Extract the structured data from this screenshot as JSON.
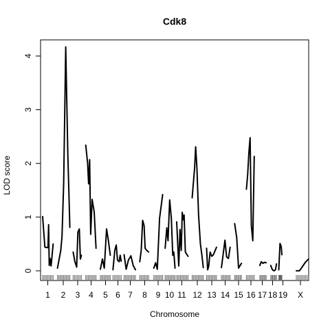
{
  "chart_data": {
    "type": "line",
    "title": "Cdk8",
    "xlabel": "Chromosome",
    "ylabel": "LOD score",
    "ylim": [
      -0.18,
      4.3
    ],
    "xlim": [
      0,
      130
    ],
    "yticks": [
      0,
      1,
      2,
      3,
      4
    ],
    "grid": false,
    "legend": "none",
    "line_color": "#000000",
    "chromosomes": [
      {
        "label": "1",
        "start": 1.0,
        "end": 6.1,
        "x": [
          1.0,
          2.1,
          3.6,
          3.9,
          4.2,
          4.6,
          5.1,
          6.1
        ],
        "y": [
          1.01,
          0.44,
          0.43,
          0.86,
          0.1,
          0.23,
          0.09,
          0.5
        ]
      },
      {
        "label": "2",
        "start": 8.2,
        "end": 14.2,
        "x": [
          8.2,
          9.8,
          10.4,
          11.2,
          12.2,
          13.2,
          14.2
        ],
        "y": [
          0.05,
          0.38,
          0.64,
          1.62,
          4.17,
          2.2,
          0.81
        ]
      },
      {
        "label": "3",
        "start": 15.8,
        "end": 19.8,
        "x": [
          15.8,
          16.6,
          17.5,
          18.1,
          18.8,
          19.3,
          19.8
        ],
        "y": [
          0.35,
          0.18,
          0.07,
          0.72,
          0.78,
          0.22,
          0.29
        ]
      },
      {
        "label": "4",
        "start": 21.9,
        "end": 26.9,
        "x": [
          21.9,
          22.8,
          23.3,
          23.8,
          24.3,
          25.0,
          26.0,
          26.9
        ],
        "y": [
          2.34,
          2.01,
          1.62,
          2.07,
          0.68,
          1.33,
          1.1,
          0.42
        ]
      },
      {
        "label": "5",
        "start": 29.0,
        "end": 33.8,
        "x": [
          29.0,
          30.0,
          30.9,
          32.0,
          32.9,
          33.8
        ],
        "y": [
          0.03,
          0.22,
          0.05,
          0.78,
          0.56,
          0.29
        ]
      },
      {
        "label": "6",
        "start": 35.1,
        "end": 39.1,
        "x": [
          35.1,
          36.0,
          36.7,
          37.3,
          38.1,
          38.6,
          39.1
        ],
        "y": [
          0.02,
          0.38,
          0.48,
          0.2,
          0.17,
          0.29,
          0.18
        ]
      },
      {
        "label": "7",
        "start": 40.5,
        "end": 46.0,
        "x": [
          40.5,
          41.5,
          42.6,
          43.8,
          44.9,
          46.0
        ],
        "y": [
          0.3,
          0.03,
          0.2,
          0.28,
          0.1,
          0.02
        ]
      },
      {
        "label": "8",
        "start": 48.1,
        "end": 52.4,
        "x": [
          48.1,
          48.8,
          49.5,
          50.2,
          50.7,
          51.5,
          52.4
        ],
        "y": [
          0.17,
          0.38,
          0.94,
          0.84,
          0.42,
          0.38,
          0.35
        ]
      },
      {
        "label": "9",
        "start": 54.9,
        "end": 59.2,
        "x": [
          54.9,
          55.8,
          56.6,
          57.7,
          59.2
        ],
        "y": [
          0.05,
          0.15,
          0.03,
          0.98,
          1.42
        ]
      },
      {
        "label": "10",
        "start": 60.4,
        "end": 65.2,
        "x": [
          60.4,
          61.2,
          61.8,
          62.6,
          63.4,
          64.1,
          64.6,
          65.2
        ],
        "y": [
          0.42,
          0.8,
          0.56,
          1.32,
          0.98,
          0.29,
          0.35,
          0.05
        ]
      },
      {
        "label": "11",
        "start": 66.0,
        "end": 71.5,
        "x": [
          66.0,
          67.0,
          67.6,
          68.2,
          68.7,
          69.1,
          69.6,
          70.2,
          71.5
        ],
        "y": [
          0.91,
          0.09,
          0.77,
          0.38,
          1.09,
          0.95,
          1.04,
          0.35,
          0.27
        ]
      },
      {
        "label": "12",
        "start": 73.5,
        "end": 78.9,
        "x": [
          73.5,
          74.7,
          75.2,
          75.8,
          76.6,
          77.5,
          78.2,
          78.9
        ],
        "y": [
          1.36,
          1.92,
          2.31,
          1.92,
          1.05,
          0.5,
          0.3,
          0.06
        ]
      },
      {
        "label": "13",
        "start": 80.5,
        "end": 85.3,
        "x": [
          80.5,
          81.0,
          81.5,
          82.2,
          83.0,
          83.8,
          85.3
        ],
        "y": [
          0.42,
          0.02,
          0.08,
          0.35,
          0.27,
          0.3,
          0.44
        ]
      },
      {
        "label": "14",
        "start": 87.7,
        "end": 91.9,
        "x": [
          87.7,
          88.5,
          89.4,
          90.2,
          91.1,
          91.9
        ],
        "y": [
          0.06,
          0.3,
          0.57,
          0.26,
          0.23,
          0.44
        ]
      },
      {
        "label": "15",
        "start": 94.1,
        "end": 97.4,
        "x": [
          94.1,
          95.1,
          96.0,
          97.4
        ],
        "y": [
          0.88,
          0.62,
          0.05,
          0.14
        ]
      },
      {
        "label": "16",
        "start": 99.8,
        "end": 103.6,
        "x": [
          99.8,
          100.4,
          101.0,
          101.6,
          102.2,
          102.9,
          103.6
        ],
        "y": [
          1.52,
          1.78,
          2.2,
          2.48,
          0.84,
          0.56,
          2.13
        ]
      },
      {
        "label": "17",
        "start": 106.3,
        "end": 109.4,
        "x": [
          106.3,
          107.0,
          107.8,
          108.6,
          109.4
        ],
        "y": [
          0.1,
          0.17,
          0.14,
          0.16,
          0.15
        ]
      },
      {
        "label": "18",
        "start": 111.6,
        "end": 114.4,
        "x": [
          111.6,
          112.4,
          113.2,
          113.9,
          114.4
        ],
        "y": [
          0.1,
          0.02,
          0.0,
          0.02,
          0.13
        ]
      },
      {
        "label": "19",
        "start": 115.5,
        "end": 117.0,
        "x": [
          115.5,
          116.1,
          116.7,
          117.0
        ],
        "y": [
          0.02,
          0.51,
          0.45,
          0.3
        ]
      },
      {
        "label": "X",
        "start": 124.0,
        "end": 129.9,
        "x": [
          124.0,
          125.5,
          127.0,
          128.4,
          129.9
        ],
        "y": [
          0.0,
          0.0,
          0.08,
          0.16,
          0.22
        ]
      }
    ],
    "xtick_labels": [
      {
        "label": "1",
        "x": 3.5
      },
      {
        "label": "2",
        "x": 11.0
      },
      {
        "label": "3",
        "x": 18.0
      },
      {
        "label": "4",
        "x": 24.5
      },
      {
        "label": "5",
        "x": 31.5
      },
      {
        "label": "6",
        "x": 37.5
      },
      {
        "label": "7",
        "x": 43.5
      },
      {
        "label": "8",
        "x": 50.5
      },
      {
        "label": "9",
        "x": 57.0
      },
      {
        "label": "10",
        "x": 62.5
      },
      {
        "label": "11",
        "x": 68.5
      },
      {
        "label": "12",
        "x": 76.0
      },
      {
        "label": "13",
        "x": 83.0
      },
      {
        "label": "14",
        "x": 89.5
      },
      {
        "label": "15",
        "x": 96.0
      },
      {
        "label": "16",
        "x": 102.0
      },
      {
        "label": "17",
        "x": 107.5
      },
      {
        "label": "18",
        "x": 112.5
      },
      {
        "label": "19",
        "x": 117.5
      },
      {
        "label": "X",
        "x": 126.0
      }
    ]
  }
}
